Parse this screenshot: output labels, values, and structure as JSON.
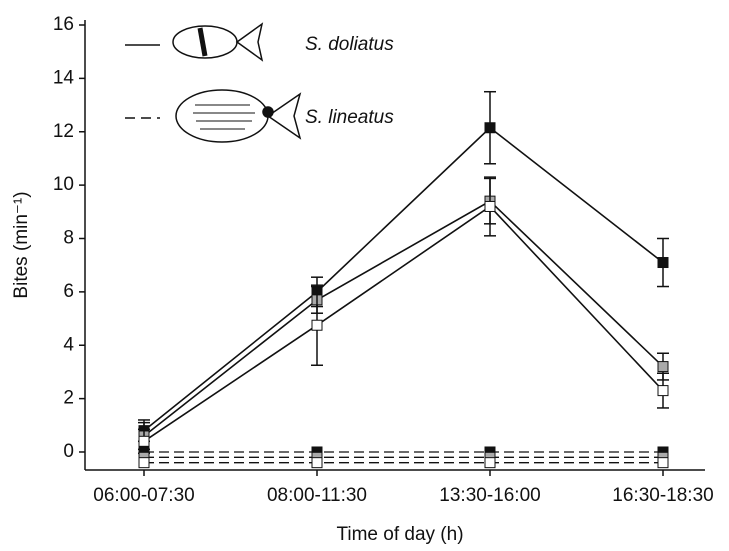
{
  "chart_data": {
    "type": "line",
    "categories": [
      "06:00-07:30",
      "08:00-11:30",
      "13:30-16:00",
      "16:30-18:30"
    ],
    "x_label": "Time of day (h)",
    "y_label": "Bites (min⁻¹)",
    "ylim": [
      -0.6,
      16
    ],
    "yticks": [
      0,
      2,
      4,
      6,
      8,
      10,
      12,
      14,
      16
    ],
    "legend": [
      {
        "name": "S. doliatus",
        "dash": false
      },
      {
        "name": "S. lineatus",
        "dash": true
      }
    ],
    "series": [
      {
        "color": "#111111",
        "marker_color": "#111111",
        "dash": false,
        "values": [
          0.8,
          6.0,
          12.15,
          7.1
        ],
        "errors": [
          0.4,
          0.55,
          1.35,
          0.9
        ]
      },
      {
        "color": "#111111",
        "marker_color": "#aaaaaa",
        "dash": false,
        "values": [
          0.6,
          5.7,
          9.4,
          3.2
        ],
        "errors": [
          0.5,
          0.5,
          0.85,
          0.5
        ]
      },
      {
        "color": "#111111",
        "marker_color": "#ffffff",
        "dash": false,
        "values": [
          0.4,
          4.75,
          9.2,
          2.3
        ],
        "errors": [
          0.45,
          1.5,
          1.1,
          0.65
        ]
      },
      {
        "color": "#111111",
        "marker_color": "#111111",
        "dash": true,
        "values": [
          0,
          0,
          0,
          0
        ]
      },
      {
        "color": "#111111",
        "marker_color": "#aaaaaa",
        "dash": true,
        "values": [
          -0.2,
          -0.2,
          -0.2,
          -0.2
        ]
      },
      {
        "color": "#111111",
        "marker_color": "#ffffff",
        "dash": true,
        "values": [
          -0.4,
          -0.4,
          -0.4,
          -0.4
        ]
      }
    ]
  }
}
